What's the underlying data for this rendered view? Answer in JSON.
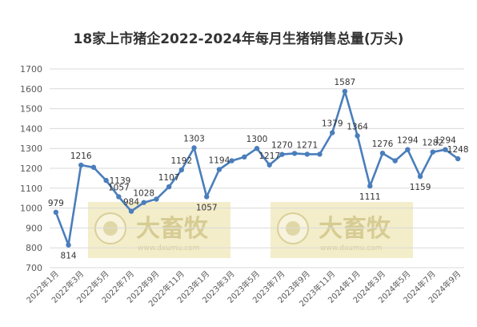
{
  "watermark": {
    "brand": "大畜牧",
    "url": "www.dxumu.com",
    "color": "#EFE7B8"
  },
  "chart_data": {
    "type": "line",
    "title": "18家上市猪企2022-2024年每月生猪销售总量(万头)",
    "xlabel": "",
    "ylabel": "",
    "ylim": [
      700,
      1700
    ],
    "yticks": [
      700,
      800,
      900,
      1000,
      1100,
      1200,
      1300,
      1400,
      1500,
      1600,
      1700
    ],
    "grid": true,
    "line_color": "#4A7EBB",
    "x": [
      "2022年1月",
      "2022年2月",
      "2022年3月",
      "2022年4月",
      "2022年5月",
      "2022年6月",
      "2022年7月",
      "2022年8月",
      "2022年9月",
      "2022年10月",
      "2022年11月",
      "2022年12月",
      "2023年1月",
      "2023年2月",
      "2023年3月",
      "2023年4月",
      "2023年5月",
      "2023年6月",
      "2023年7月",
      "2023年8月",
      "2023年9月",
      "2023年10月",
      "2023年11月",
      "2023年12月",
      "2024年1月",
      "2024年2月",
      "2024年3月",
      "2024年4月",
      "2024年5月",
      "2024年6月",
      "2024年7月",
      "2024年8月",
      "2024年9月"
    ],
    "xtick_labels": [
      "2022年1月",
      "2022年3月",
      "2022年5月",
      "2022年7月",
      "2022年9月",
      "2022年11月",
      "2023年1月",
      "2023年3月",
      "2023年5月",
      "2023年7月",
      "2023年9月",
      "2023年11月",
      "2024年1月",
      "2024年3月",
      "2024年5月",
      "2024年7月",
      "2024年9月"
    ],
    "values": [
      979,
      814,
      1216,
      1205,
      1139,
      1057,
      984,
      1028,
      1045,
      1107,
      1192,
      1303,
      1057,
      1194,
      1238,
      1257,
      1300,
      1217,
      1270,
      1275,
      1271,
      1271,
      1379,
      1587,
      1364,
      1111,
      1276,
      1238,
      1294,
      1159,
      1282,
      1294,
      1248
    ],
    "data_labels": [
      {
        "i": 0,
        "text": "979",
        "pos": "above"
      },
      {
        "i": 1,
        "text": "814",
        "pos": "below"
      },
      {
        "i": 2,
        "text": "1216",
        "pos": "above"
      },
      {
        "i": 4,
        "text": "1139",
        "pos": "right"
      },
      {
        "i": 5,
        "text": "1057",
        "pos": "above"
      },
      {
        "i": 6,
        "text": "984",
        "pos": "above"
      },
      {
        "i": 7,
        "text": "1028",
        "pos": "above"
      },
      {
        "i": 9,
        "text": "1107",
        "pos": "above"
      },
      {
        "i": 10,
        "text": "1192",
        "pos": "above"
      },
      {
        "i": 11,
        "text": "1303",
        "pos": "above"
      },
      {
        "i": 12,
        "text": "1057",
        "pos": "below"
      },
      {
        "i": 13,
        "text": "1194",
        "pos": "above"
      },
      {
        "i": 16,
        "text": "1300",
        "pos": "above"
      },
      {
        "i": 17,
        "text": "1217",
        "pos": "above"
      },
      {
        "i": 18,
        "text": "1270",
        "pos": "above"
      },
      {
        "i": 20,
        "text": "1271",
        "pos": "above"
      },
      {
        "i": 22,
        "text": "1379",
        "pos": "above"
      },
      {
        "i": 23,
        "text": "1587",
        "pos": "above"
      },
      {
        "i": 24,
        "text": "1364",
        "pos": "above"
      },
      {
        "i": 25,
        "text": "1111",
        "pos": "below"
      },
      {
        "i": 26,
        "text": "1276",
        "pos": "above"
      },
      {
        "i": 28,
        "text": "1294",
        "pos": "above"
      },
      {
        "i": 29,
        "text": "1159",
        "pos": "below"
      },
      {
        "i": 30,
        "text": "1282",
        "pos": "above"
      },
      {
        "i": 31,
        "text": "1294",
        "pos": "above"
      },
      {
        "i": 32,
        "text": "1248",
        "pos": "above"
      }
    ]
  }
}
